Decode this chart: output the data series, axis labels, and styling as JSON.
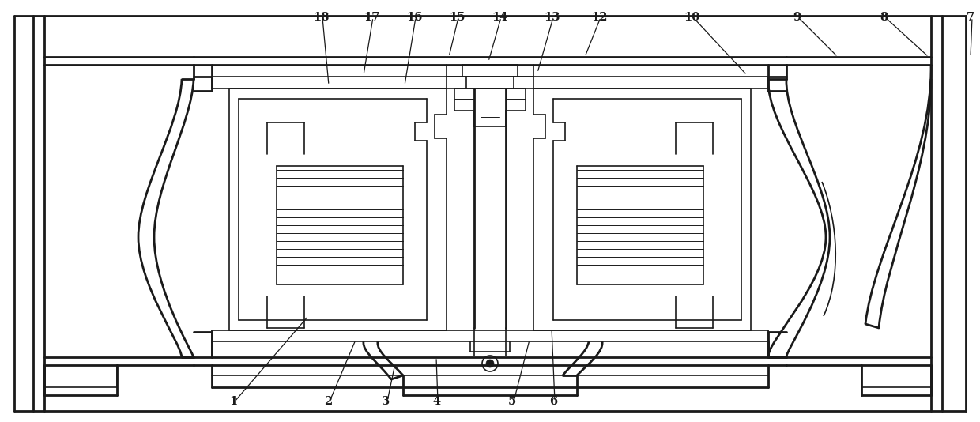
{
  "bg_color": "#ffffff",
  "line_color": "#1a1a1a",
  "lw_thick": 2.0,
  "lw_main": 1.2,
  "lw_thin": 0.7,
  "labels_data": [
    [
      "1",
      295,
      508,
      390,
      400
    ],
    [
      "2",
      415,
      508,
      450,
      430
    ],
    [
      "3",
      488,
      508,
      500,
      460
    ],
    [
      "4",
      552,
      508,
      552,
      452
    ],
    [
      "5",
      648,
      508,
      670,
      430
    ],
    [
      "6",
      700,
      508,
      698,
      415
    ],
    [
      "7",
      1228,
      22,
      1228,
      72
    ],
    [
      "8",
      1118,
      22,
      1175,
      72
    ],
    [
      "9",
      1008,
      22,
      1060,
      72
    ],
    [
      "10",
      875,
      22,
      945,
      95
    ],
    [
      "12",
      758,
      22,
      740,
      72
    ],
    [
      "13",
      698,
      22,
      680,
      92
    ],
    [
      "14",
      632,
      22,
      618,
      78
    ],
    [
      "15",
      578,
      22,
      568,
      72
    ],
    [
      "16",
      524,
      22,
      512,
      108
    ],
    [
      "17",
      470,
      22,
      460,
      95
    ],
    [
      "18",
      406,
      22,
      416,
      108
    ]
  ]
}
